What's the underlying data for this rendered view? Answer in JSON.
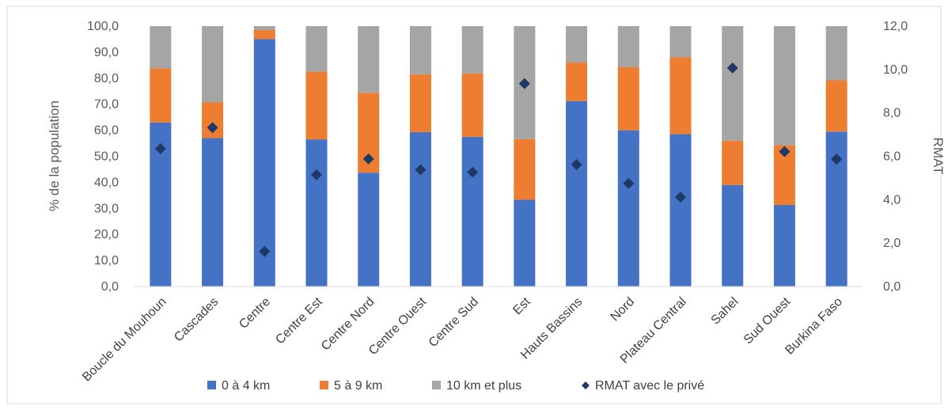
{
  "chart_data": {
    "type": "bar",
    "stacked": true,
    "categories": [
      "Boucle du Mouhoun",
      "Cascades",
      "Centre",
      "Centre Est",
      "Centre Nord",
      "Centre Ouest",
      "Centre Sud",
      "Est",
      "Hauts Bassins",
      "Nord",
      "Plateau Central",
      "Sahel",
      "Sud Ouest",
      "Burkina Faso"
    ],
    "series": [
      {
        "name": "0 à 4 km",
        "axis": "left",
        "color": "#4472c4",
        "values": [
          63.0,
          57.0,
          95.0,
          56.5,
          43.7,
          59.3,
          57.5,
          33.3,
          71.2,
          60.0,
          58.5,
          39.0,
          31.3,
          59.5
        ]
      },
      {
        "name": "5  à 9 km",
        "axis": "left",
        "color": "#ed7d31",
        "values": [
          20.8,
          13.8,
          3.5,
          26.0,
          30.7,
          22.2,
          24.3,
          23.3,
          14.8,
          24.2,
          29.5,
          17.0,
          23.0,
          19.8
        ]
      },
      {
        "name": "10 km et plus",
        "axis": "left",
        "color": "#a5a5a5",
        "values": [
          16.2,
          29.2,
          1.5,
          17.5,
          25.6,
          18.5,
          18.2,
          43.4,
          14.0,
          15.8,
          12.0,
          44.0,
          45.7,
          20.7
        ]
      },
      {
        "name": "RMAT avec le privé",
        "axis": "right",
        "type": "scatter",
        "marker": "diamond",
        "color": "#1f3864",
        "values": [
          6.35,
          7.32,
          1.62,
          5.15,
          5.88,
          5.38,
          5.27,
          9.35,
          5.62,
          4.75,
          4.12,
          10.07,
          6.22,
          5.87
        ]
      }
    ],
    "ylabel": "% de la population",
    "y2label": "RMAT",
    "ylim": [
      0,
      100
    ],
    "y2lim": [
      0,
      12
    ],
    "yticks": [
      "0,0",
      "10,0",
      "20,0",
      "30,0",
      "40,0",
      "50,0",
      "60,0",
      "70,0",
      "80,0",
      "90,0",
      "100,0"
    ],
    "y2ticks": [
      "0,0",
      "2,0",
      "4,0",
      "6,0",
      "8,0",
      "10,0",
      "12,0"
    ],
    "grid": false,
    "legend": "bottom"
  }
}
